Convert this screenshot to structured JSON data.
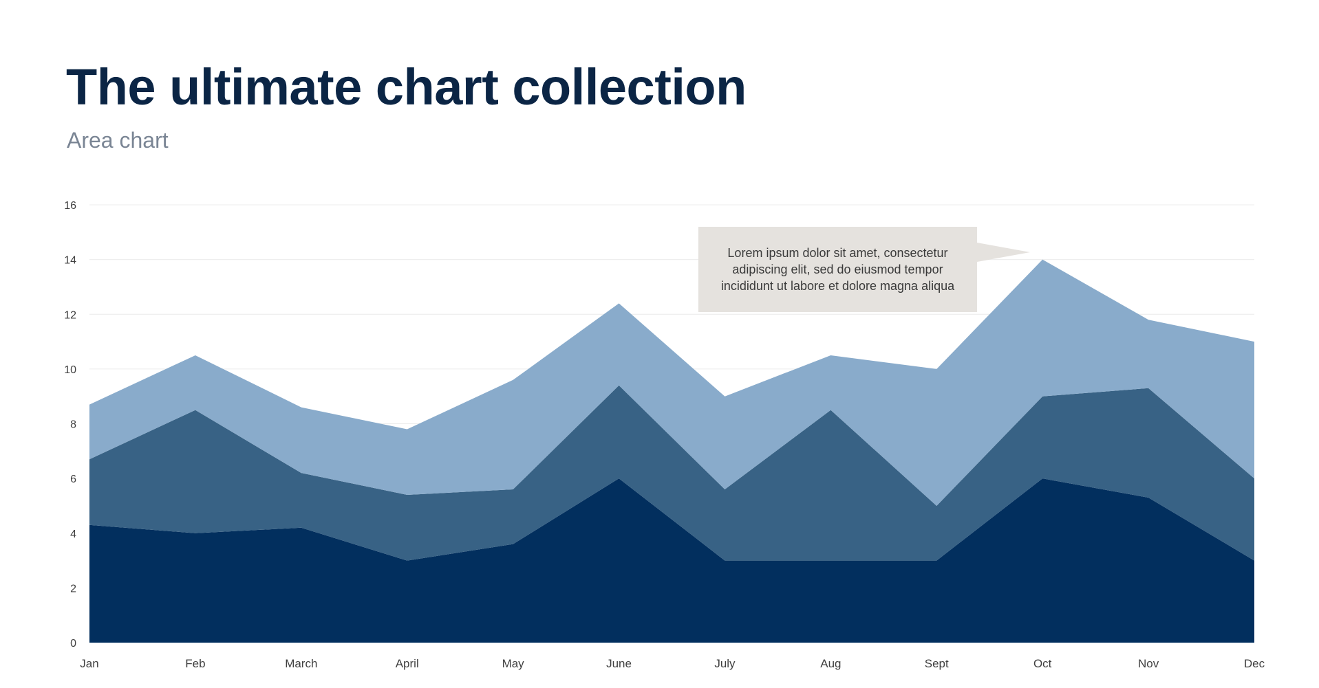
{
  "page": {
    "title": "The ultimate chart collection",
    "subtitle": "Area chart"
  },
  "callout": {
    "text": "Lorem ipsum dolor sit amet, consectetur adipiscing elit, sed do eiusmod tempor incididunt ut labore et dolore magna aliqua",
    "color": "#e5e2de"
  },
  "chart_data": {
    "type": "area",
    "stacked": true,
    "categories": [
      "Jan",
      "Feb",
      "March",
      "April",
      "May",
      "June",
      "July",
      "Aug",
      "Sept",
      "Oct",
      "Nov",
      "Dec"
    ],
    "series": [
      {
        "color": "#022f5e",
        "values": [
          4.3,
          4.0,
          4.2,
          3.0,
          3.6,
          6.0,
          3.0,
          3.0,
          3.0,
          6.0,
          5.3,
          3.0
        ]
      },
      {
        "color": "#386285",
        "values": [
          2.4,
          4.5,
          2.0,
          2.4,
          2.0,
          3.4,
          2.6,
          5.5,
          2.0,
          3.0,
          4.0,
          3.0
        ]
      },
      {
        "color": "#89abcb",
        "values": [
          2.0,
          2.0,
          2.4,
          2.4,
          4.0,
          3.0,
          3.4,
          2.0,
          5.0,
          5.0,
          2.5,
          5.0
        ]
      }
    ],
    "ylim": [
      0,
      16
    ],
    "yticks": [
      0,
      2,
      4,
      6,
      8,
      10,
      12,
      14,
      16
    ],
    "grid": true,
    "legend": "none",
    "xlabel": "",
    "ylabel": ""
  }
}
